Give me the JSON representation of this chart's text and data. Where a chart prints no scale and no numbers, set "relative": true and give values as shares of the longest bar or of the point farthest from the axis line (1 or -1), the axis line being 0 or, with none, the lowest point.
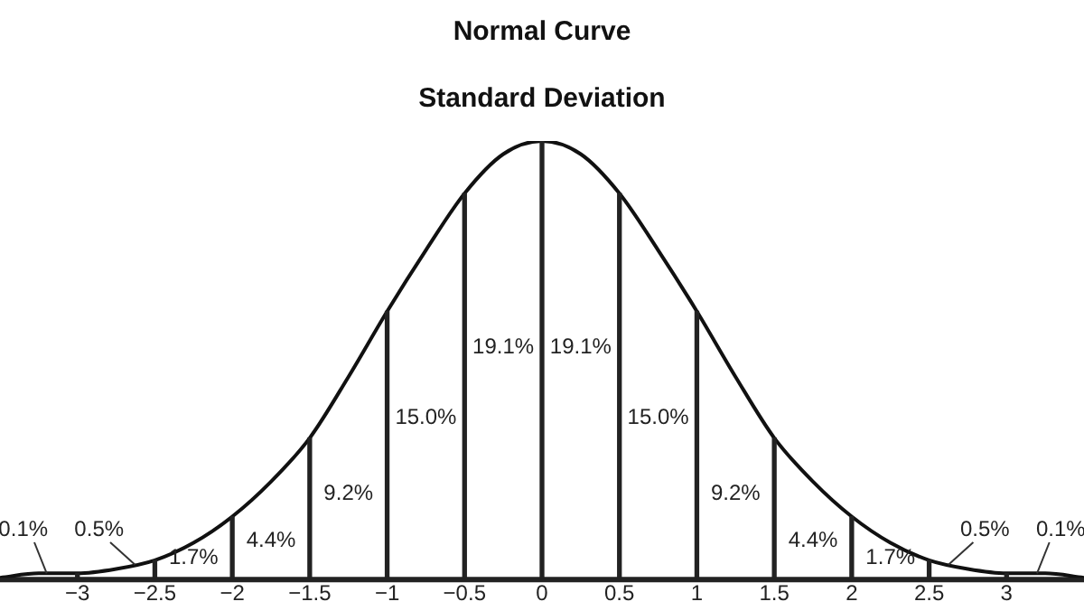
{
  "chart_data": {
    "type": "line",
    "title": "Normal Curve",
    "subtitle": "Standard Deviation",
    "relative": true,
    "x": [
      -3.5,
      -3.25,
      -3,
      -2.75,
      -2.5,
      -2.25,
      -2,
      -1.75,
      -1.5,
      -1.25,
      -1,
      -0.75,
      -0.5,
      -0.25,
      0,
      0.25,
      0.5,
      0.75,
      1,
      1.25,
      1.5,
      1.75,
      2,
      2.25,
      2.5,
      2.75,
      3,
      3.25,
      3.5
    ],
    "series": [
      {
        "color": "#111111",
        "values": [
          0,
          0.01,
          0.01,
          0.02,
          0.04,
          0.08,
          0.14,
          0.22,
          0.32,
          0.46,
          0.61,
          0.75,
          0.88,
          0.97,
          1,
          0.97,
          0.88,
          0.75,
          0.61,
          0.46,
          0.32,
          0.22,
          0.14,
          0.08,
          0.04,
          0.02,
          0.01,
          0.01,
          0
        ]
      },
      {
        "type": "bar",
        "color": "#222222",
        "x": [
          -3,
          -2.5,
          -2,
          -1.5,
          -1,
          -0.5,
          0,
          0.5,
          1,
          1.5,
          2,
          2.5,
          3
        ],
        "values": [
          0.01,
          0.04,
          0.14,
          0.32,
          0.61,
          0.88,
          1,
          0.88,
          0.61,
          0.32,
          0.14,
          0.04,
          0.01
        ]
      }
    ],
    "xlim": [
      -3.5,
      3.5
    ],
    "xticks": [
      {
        "value": -3,
        "label": "−3"
      },
      {
        "value": -2.5,
        "label": "−2.5"
      },
      {
        "value": -2,
        "label": "−2"
      },
      {
        "value": -1.5,
        "label": "−1.5"
      },
      {
        "value": -1,
        "label": "−1"
      },
      {
        "value": -0.5,
        "label": "−0.5"
      },
      0,
      0.5,
      1,
      1.5,
      2,
      2.5,
      3
    ],
    "annotations": [
      "0.1%",
      "0.5%",
      "1.7%",
      "4.4%",
      "9.2%",
      "15.0%",
      "19.1%",
      "19.1%",
      "15.0%",
      "9.2%",
      "4.4%",
      "1.7%",
      "0.5%",
      "0.1%"
    ],
    "grid": false,
    "legend": false,
    "marker": "none",
    "line_style": "solid"
  }
}
